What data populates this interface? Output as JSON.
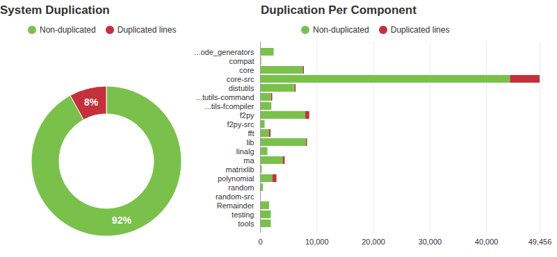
{
  "chart_data": [
    {
      "type": "donut",
      "title": "System Duplication",
      "categories": [
        "Non-duplicated",
        "Duplicated lines"
      ],
      "values": [
        92,
        8
      ],
      "value_labels": [
        "92%",
        "8%"
      ],
      "colors": [
        "#7ac14c",
        "#c4313c"
      ],
      "data_labels": true,
      "legend": "top"
    },
    {
      "type": "bar",
      "title": "Duplication Per Component",
      "orientation": "horizontal",
      "stacked": true,
      "grid": true,
      "legend": "top",
      "categories": [
        "...ode_generators",
        "compat",
        "core",
        "core-src",
        "distutils",
        "...tutils-command",
        "...tils-fcompiler",
        "f2py",
        "f2py-src",
        "fft",
        "lib",
        "linalg",
        "ma",
        "matrixlib",
        "polynomial",
        "random",
        "random-src",
        "Remainder",
        "testing",
        "tools"
      ],
      "series": [
        {
          "name": "Non-duplicated",
          "color": "#7ac14c",
          "values": [
            2400,
            200,
            7550,
            44200,
            6100,
            1950,
            2000,
            8000,
            800,
            1600,
            8100,
            1300,
            4000,
            300,
            2200,
            500,
            100,
            1600,
            1900,
            1900
          ]
        },
        {
          "name": "Duplicated lines",
          "color": "#c4313c",
          "values": [
            0,
            0,
            200,
            5256,
            200,
            200,
            0,
            700,
            0,
            250,
            200,
            0,
            350,
            0,
            700,
            0,
            0,
            0,
            0,
            0
          ]
        }
      ],
      "xlim": [
        0,
        49456
      ],
      "xticks": [
        0,
        {
          "value": 10000,
          "label": "10,000"
        },
        {
          "value": 20000,
          "label": "20,000"
        },
        {
          "value": 30000,
          "label": "30,000"
        },
        {
          "value": 40000,
          "label": "40,000"
        },
        {
          "value": 49456,
          "label": "49,456"
        }
      ]
    }
  ]
}
